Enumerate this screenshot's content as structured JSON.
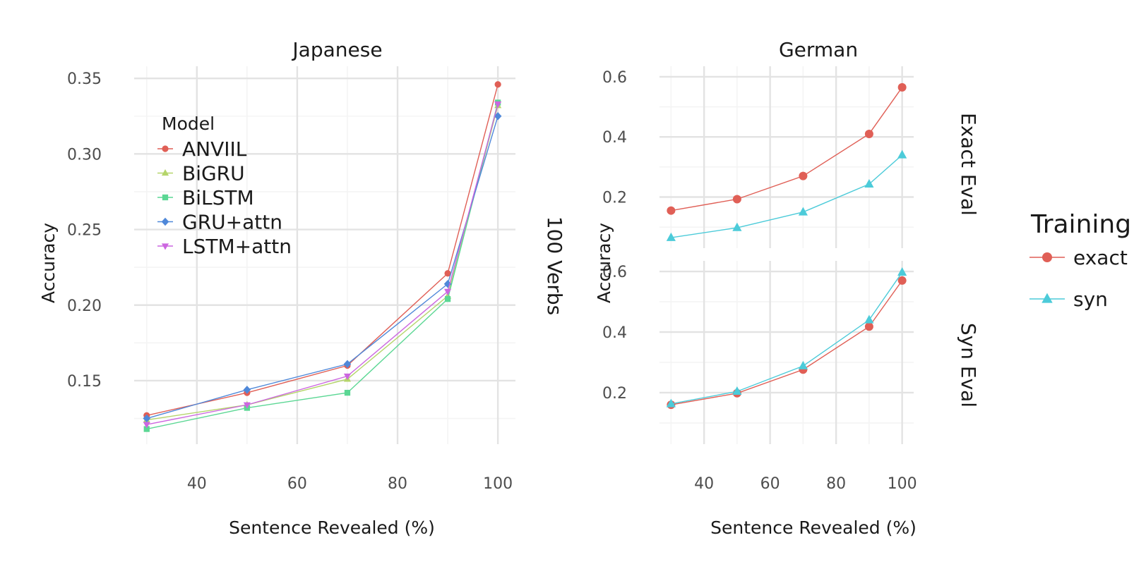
{
  "chart_data": [
    {
      "type": "line",
      "title": "Japanese",
      "facet_label": "100 Verbs",
      "xlabel": "Sentence Revealed (%)",
      "ylabel": "Accuracy",
      "x_ticks": [
        "40",
        "60",
        "80",
        "100"
      ],
      "y_ticks": [
        "0.15",
        "0.20",
        "0.25",
        "0.30",
        "0.35"
      ],
      "xlim": [
        27.5,
        103.5
      ],
      "ylim": [
        0.108,
        0.358
      ],
      "grid": true,
      "legend": {
        "title": "Model",
        "placement": "top-left inside",
        "entries": [
          "ANVIIL",
          "BiGRU",
          "BiLSTM",
          "GRU+attn",
          "LSTM+attn"
        ]
      },
      "x": [
        30,
        50,
        70,
        90,
        100
      ],
      "series": [
        {
          "name": "ANVIIL",
          "color": "#e05f56",
          "marker": "circle",
          "values": [
            0.127,
            0.142,
            0.16,
            0.221,
            0.346
          ]
        },
        {
          "name": "BiGRU",
          "color": "#b5d56b",
          "marker": "triangle-up",
          "values": [
            0.124,
            0.134,
            0.151,
            0.206,
            0.332
          ]
        },
        {
          "name": "BiLSTM",
          "color": "#5bd794",
          "marker": "square",
          "values": [
            0.118,
            0.132,
            0.142,
            0.204,
            0.334
          ]
        },
        {
          "name": "GRU+attn",
          "color": "#4f88d9",
          "marker": "diamond",
          "values": [
            0.125,
            0.144,
            0.161,
            0.214,
            0.325
          ]
        },
        {
          "name": "LSTM+attn",
          "color": "#cc66e0",
          "marker": "triangle-down",
          "values": [
            0.121,
            0.134,
            0.153,
            0.209,
            0.333
          ]
        }
      ]
    },
    {
      "type": "line",
      "title": "German",
      "facet_label": "Exact Eval",
      "xlabel": "Sentence Revealed (%)",
      "ylabel": "Accuracy",
      "x_ticks": [
        "40",
        "60",
        "80",
        "100"
      ],
      "y_ticks": [
        "0.2",
        "0.4",
        "0.6"
      ],
      "xlim": [
        26.5,
        103.5
      ],
      "ylim": [
        0.03,
        0.635
      ],
      "grid": true,
      "x": [
        30,
        50,
        70,
        90,
        100
      ],
      "series": [
        {
          "name": "exact",
          "color": "#e05f56",
          "marker": "circle",
          "values": [
            0.155,
            0.193,
            0.27,
            0.41,
            0.565
          ]
        },
        {
          "name": "syn",
          "color": "#4ccbd9",
          "marker": "triangle-up",
          "values": [
            0.065,
            0.098,
            0.15,
            0.243,
            0.34
          ]
        }
      ]
    },
    {
      "type": "line",
      "title": "",
      "facet_label": "Syn Eval",
      "xlabel": "Sentence Revealed (%)",
      "ylabel": "Accuracy",
      "x_ticks": [
        "40",
        "60",
        "80",
        "100"
      ],
      "y_ticks": [
        "0.2",
        "0.4",
        "0.6"
      ],
      "xlim": [
        26.5,
        103.5
      ],
      "ylim": [
        0.03,
        0.635
      ],
      "grid": true,
      "legend": {
        "title": "Training",
        "placement": "right",
        "entries": [
          "exact",
          "syn"
        ]
      },
      "x": [
        30,
        50,
        70,
        90,
        100
      ],
      "series": [
        {
          "name": "exact",
          "color": "#e05f56",
          "marker": "circle",
          "values": [
            0.16,
            0.198,
            0.276,
            0.418,
            0.57
          ]
        },
        {
          "name": "syn",
          "color": "#4ccbd9",
          "marker": "triangle-up",
          "values": [
            0.163,
            0.204,
            0.288,
            0.44,
            0.597
          ]
        }
      ]
    }
  ]
}
